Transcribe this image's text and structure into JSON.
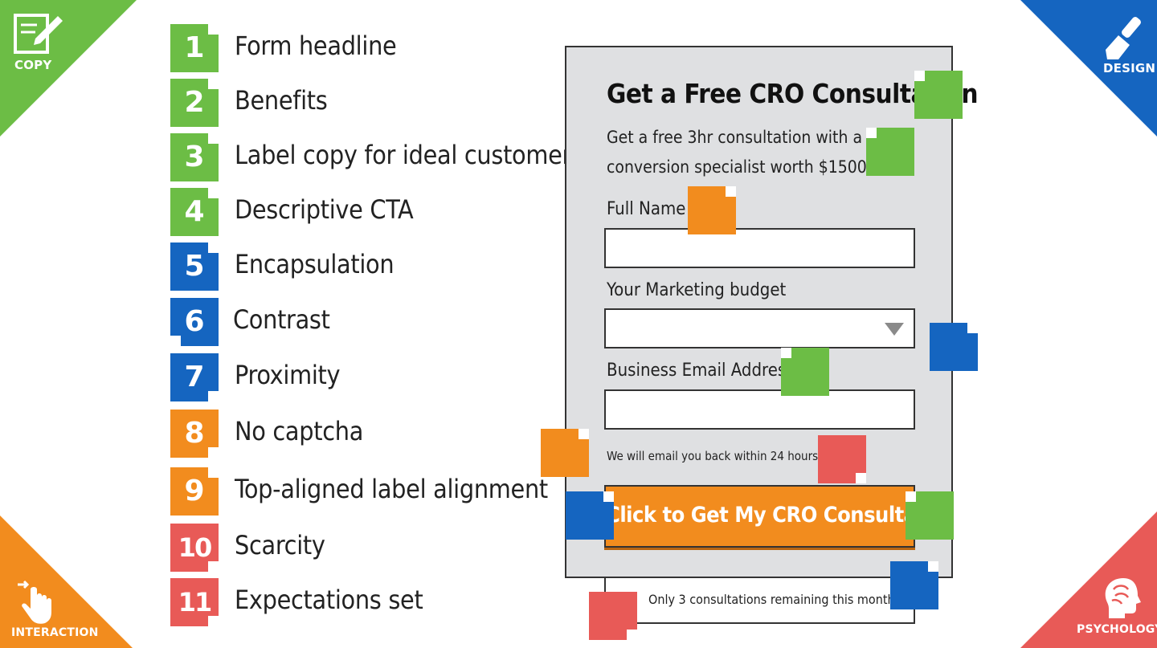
{
  "corners": {
    "copy": "COPY",
    "design": "DESIGN",
    "interaction": "INTERACTION",
    "psychology": "PSYCHOLOGY"
  },
  "legend": [
    {
      "num": "1",
      "text": "Form headline",
      "color": "#6cbd45"
    },
    {
      "num": "2",
      "text": "Benefits",
      "color": "#6cbd45"
    },
    {
      "num": "3",
      "text": "Label copy for ideal customer",
      "color": "#6cbd45"
    },
    {
      "num": "4",
      "text": "Descriptive CTA",
      "color": "#6cbd45"
    },
    {
      "num": "5",
      "text": "Encapsulation",
      "color": "#1565c0"
    },
    {
      "num": "6",
      "text": "Contrast",
      "color": "#1565c0"
    },
    {
      "num": "7",
      "text": "Proximity",
      "color": "#1565c0"
    },
    {
      "num": "8",
      "text": "No captcha",
      "color": "#f28c1e"
    },
    {
      "num": "9",
      "text": "Top-aligned label alignment",
      "color": "#f28c1e"
    },
    {
      "num": "10",
      "text": "Scarcity",
      "color": "#e85a57"
    },
    {
      "num": "11",
      "text": "Expectations set",
      "color": "#e85a57"
    }
  ],
  "form": {
    "title": "Get a Free CRO Consultation",
    "benefits": "Get a free 3hr consultation with a conversion specialist worth $1500.",
    "full_name_label": "Full Name",
    "budget_label": "Your Marketing budget",
    "email_label": "Business Email Address",
    "note": "We will email you back within 24 hours",
    "cta": "Click to Get My CRO Consultation",
    "scarcity": "Only 3 consultations remaining this month"
  },
  "colors": {
    "copy": "#6cbd45",
    "design": "#1565c0",
    "interaction": "#f28c1e",
    "psychology": "#e85a57"
  },
  "icons": [
    "pencil-note-icon",
    "paintbrush-icon",
    "pointing-hand-icon",
    "brain-head-icon",
    "dropdown-caret-icon"
  ]
}
